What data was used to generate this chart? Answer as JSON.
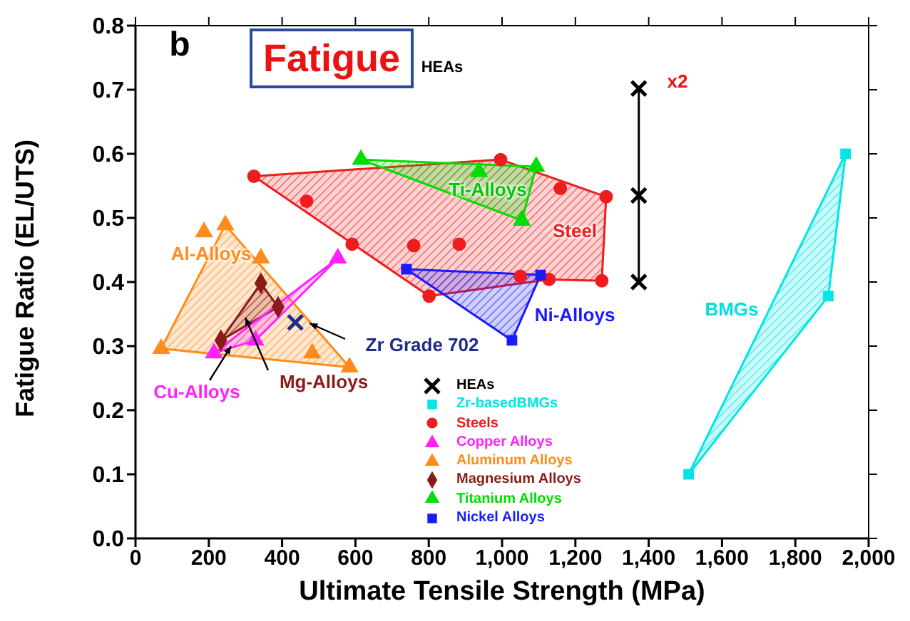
{
  "chart_data": {
    "type": "scatter",
    "xlabel": "Ultimate Tensile Strength (MPa)",
    "ylabel": "Fatigue Ratio (EL/UTS)",
    "xlim": [
      0,
      2000
    ],
    "xticks": [
      0,
      200,
      400,
      600,
      800,
      {
        "value": 1000,
        "label": "1,000"
      },
      {
        "value": 1200,
        "label": "1,200"
      },
      {
        "value": 1400,
        "label": "1,400"
      },
      {
        "value": 1600,
        "label": "1,600"
      },
      {
        "value": 1800,
        "label": "1,800"
      },
      {
        "value": 2000,
        "label": "2,000"
      }
    ],
    "ylim": [
      0,
      0.8
    ],
    "yticks": [
      {
        "value": 0,
        "label": "0.0"
      },
      0.1,
      0.2,
      0.3,
      0.4,
      0.5,
      0.6,
      0.7,
      0.8
    ],
    "grid": false,
    "legend": "bottom",
    "series": [
      {
        "type": "area",
        "color": "#00e5e5",
        "x": [
          1509,
          1890,
          1937
        ],
        "values": [
          0.1,
          0.378,
          0.6
        ]
      },
      {
        "type": "area",
        "color": "#ee1c1c",
        "x": [
          323,
          996,
          1284,
          1272,
          1128,
          801
        ],
        "values": [
          0.565,
          0.591,
          0.533,
          0.402,
          0.404,
          0.378
        ]
      },
      {
        "type": "area",
        "color": "#ff8c1a",
        "x": [
          70,
          245,
          584
        ],
        "values": [
          0.296,
          0.489,
          0.267
        ]
      },
      {
        "type": "area",
        "color": "#00dd00",
        "x": [
          615,
          1093,
          1054
        ],
        "values": [
          0.591,
          0.58,
          0.496
        ]
      },
      {
        "type": "area",
        "color": "#1a1aff",
        "x": [
          739,
          1105,
          1027
        ],
        "values": [
          0.42,
          0.411,
          0.309
        ]
      },
      {
        "type": "area",
        "color": "#8b1a1a",
        "x": [
          342,
          389,
          233
        ],
        "values": [
          0.398,
          0.361,
          0.309
        ]
      },
      {
        "type": "area",
        "color": "#ff22ff",
        "x": [
          214,
          552,
          327
        ],
        "values": [
          0.289,
          0.437,
          0.309
        ]
      },
      {
        "type": "line",
        "name": "HEAs",
        "color": "#000000",
        "marker": "cross",
        "x": [
          1373,
          1373,
          1373
        ],
        "values": [
          0.4,
          0.535,
          0.702
        ]
      },
      {
        "type": "scatter",
        "name": "Zr-basedBMGs",
        "color": "#00e5e5",
        "marker": "square",
        "x": [
          1509,
          1890,
          1937
        ],
        "values": [
          0.1,
          0.378,
          0.6
        ]
      },
      {
        "type": "scatter",
        "name": "Steels",
        "color": "#ee1c1c",
        "marker": "circle",
        "x": [
          323,
          467,
          591,
          759,
          883,
          801,
          996,
          1159,
          1284,
          1272,
          1128,
          1050
        ],
        "values": [
          0.565,
          0.526,
          0.459,
          0.457,
          0.459,
          0.378,
          0.591,
          0.546,
          0.533,
          0.402,
          0.404,
          0.409
        ]
      },
      {
        "type": "scatter",
        "name": "Copper Alloys",
        "color": "#ff22ff",
        "marker": "triangle",
        "x": [
          214,
          327,
          552
        ],
        "values": [
          0.289,
          0.309,
          0.437
        ]
      },
      {
        "type": "scatter",
        "name": "Aluminum Alloys",
        "color": "#ff8c1a",
        "marker": "triangle",
        "x": [
          70,
          187,
          245,
          342,
          482,
          584
        ],
        "values": [
          0.296,
          0.478,
          0.489,
          0.437,
          0.289,
          0.267
        ]
      },
      {
        "type": "scatter",
        "name": "Magnesium Alloys",
        "color": "#8b1a1a",
        "marker": "diamond",
        "x": [
          342,
          389,
          233
        ],
        "values": [
          0.398,
          0.361,
          0.309
        ]
      },
      {
        "type": "scatter",
        "name": "Titanium Alloys",
        "color": "#00dd00",
        "marker": "triangle",
        "x": [
          615,
          937,
          1093,
          1054
        ],
        "values": [
          0.591,
          0.572,
          0.58,
          0.496
        ]
      },
      {
        "type": "scatter",
        "name": "Nickel Alloys",
        "color": "#1a1aff",
        "marker": "square",
        "x": [
          739,
          1105,
          1027
        ],
        "values": [
          0.42,
          0.411,
          0.309
        ]
      },
      {
        "type": "scatter",
        "color": "#1f2d8a",
        "marker": "cross",
        "x": [
          436
        ],
        "values": [
          0.337
        ]
      }
    ],
    "annotations": [
      "b",
      "Fatigue",
      "HEAs",
      "x2",
      "Ti-Alloys",
      "Steel",
      "Al-Alloys",
      "Ni-Alloys",
      "BMGs",
      "Cu-Alloys",
      "Mg-Alloys",
      "Zr Grade 702"
    ]
  }
}
